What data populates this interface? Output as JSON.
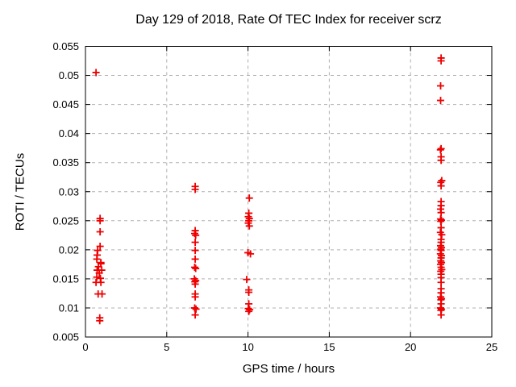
{
  "chart_data": {
    "type": "scatter",
    "title": "Day 129 of 2018, Rate Of TEC Index for receiver scrz",
    "xlabel": "GPS time / hours",
    "ylabel": "ROTI / TECUs",
    "xlim": [
      0,
      25
    ],
    "ylim": [
      0.005,
      0.055
    ],
    "xticks": [
      "0",
      "5",
      "10",
      "15",
      "20",
      "25"
    ],
    "yticks": [
      "0.005",
      "0.01",
      "0.015",
      "0.02",
      "0.025",
      "0.03",
      "0.035",
      "0.04",
      "0.045",
      "0.05",
      "0.055"
    ],
    "grid": true,
    "grid_color": "#b0b0b0",
    "border_color": "#000000",
    "marker": {
      "shape": "plus",
      "color": "#ee0000",
      "size": 9
    },
    "legend": "none",
    "series": [
      {
        "name": "ROTI",
        "points": [
          [
            0.65,
            0.0505
          ],
          [
            0.9,
            0.0254
          ],
          [
            0.9,
            0.025
          ],
          [
            0.9,
            0.0231
          ],
          [
            0.9,
            0.0206
          ],
          [
            0.75,
            0.0199
          ],
          [
            0.72,
            0.0191
          ],
          [
            0.7,
            0.0184
          ],
          [
            0.95,
            0.0178
          ],
          [
            0.95,
            0.0176
          ],
          [
            0.8,
            0.0171
          ],
          [
            0.72,
            0.0165
          ],
          [
            1.0,
            0.0165
          ],
          [
            0.85,
            0.016
          ],
          [
            0.7,
            0.0153
          ],
          [
            0.92,
            0.0151
          ],
          [
            0.65,
            0.0144
          ],
          [
            0.95,
            0.0144
          ],
          [
            0.78,
            0.0124
          ],
          [
            1.02,
            0.0124
          ],
          [
            0.88,
            0.0083
          ],
          [
            0.88,
            0.0078
          ],
          [
            6.75,
            0.0309
          ],
          [
            6.75,
            0.0304
          ],
          [
            6.75,
            0.0233
          ],
          [
            6.72,
            0.0228
          ],
          [
            6.78,
            0.0225
          ],
          [
            6.75,
            0.0213
          ],
          [
            6.75,
            0.0199
          ],
          [
            6.75,
            0.0184
          ],
          [
            6.72,
            0.017
          ],
          [
            6.78,
            0.0168
          ],
          [
            6.7,
            0.015
          ],
          [
            6.78,
            0.0147
          ],
          [
            6.73,
            0.0145
          ],
          [
            6.75,
            0.0141
          ],
          [
            6.75,
            0.0124
          ],
          [
            6.75,
            0.0119
          ],
          [
            6.72,
            0.01
          ],
          [
            6.8,
            0.0098
          ],
          [
            6.75,
            0.0088
          ],
          [
            10.08,
            0.0289
          ],
          [
            10.05,
            0.0263
          ],
          [
            10.02,
            0.0257
          ],
          [
            10.08,
            0.0254
          ],
          [
            10.05,
            0.025
          ],
          [
            10.02,
            0.0246
          ],
          [
            10.08,
            0.0241
          ],
          [
            10.0,
            0.0195
          ],
          [
            10.15,
            0.0193
          ],
          [
            9.92,
            0.0149
          ],
          [
            10.05,
            0.0131
          ],
          [
            10.05,
            0.0127
          ],
          [
            10.05,
            0.0107
          ],
          [
            10.02,
            0.0099
          ],
          [
            10.1,
            0.0097
          ],
          [
            10.05,
            0.0094
          ],
          [
            21.88,
            0.053
          ],
          [
            21.88,
            0.0525
          ],
          [
            21.85,
            0.0482
          ],
          [
            21.85,
            0.0457
          ],
          [
            21.88,
            0.0374
          ],
          [
            21.84,
            0.0372
          ],
          [
            21.88,
            0.036
          ],
          [
            21.88,
            0.0354
          ],
          [
            21.92,
            0.0319
          ],
          [
            21.86,
            0.0316
          ],
          [
            21.88,
            0.031
          ],
          [
            21.88,
            0.0283
          ],
          [
            21.88,
            0.0276
          ],
          [
            21.85,
            0.027
          ],
          [
            21.88,
            0.0264
          ],
          [
            21.85,
            0.0253
          ],
          [
            21.9,
            0.0251
          ],
          [
            21.86,
            0.0249
          ],
          [
            21.88,
            0.0238
          ],
          [
            21.84,
            0.023
          ],
          [
            21.92,
            0.0226
          ],
          [
            21.88,
            0.0218
          ],
          [
            21.88,
            0.0213
          ],
          [
            21.85,
            0.0207
          ],
          [
            21.9,
            0.0204
          ],
          [
            21.86,
            0.0201
          ],
          [
            21.88,
            0.0199
          ],
          [
            21.84,
            0.0193
          ],
          [
            21.9,
            0.019
          ],
          [
            21.88,
            0.0186
          ],
          [
            21.86,
            0.0181
          ],
          [
            21.9,
            0.0178
          ],
          [
            21.85,
            0.0175
          ],
          [
            21.88,
            0.017
          ],
          [
            21.92,
            0.0166
          ],
          [
            21.86,
            0.0163
          ],
          [
            21.88,
            0.0158
          ],
          [
            21.88,
            0.0152
          ],
          [
            21.88,
            0.0144
          ],
          [
            21.88,
            0.0133
          ],
          [
            21.88,
            0.0126
          ],
          [
            21.85,
            0.0119
          ],
          [
            21.9,
            0.0116
          ],
          [
            21.87,
            0.0114
          ],
          [
            21.88,
            0.0107
          ],
          [
            21.85,
            0.01
          ],
          [
            21.9,
            0.0098
          ],
          [
            21.87,
            0.0096
          ],
          [
            21.88,
            0.0088
          ]
        ]
      }
    ]
  }
}
